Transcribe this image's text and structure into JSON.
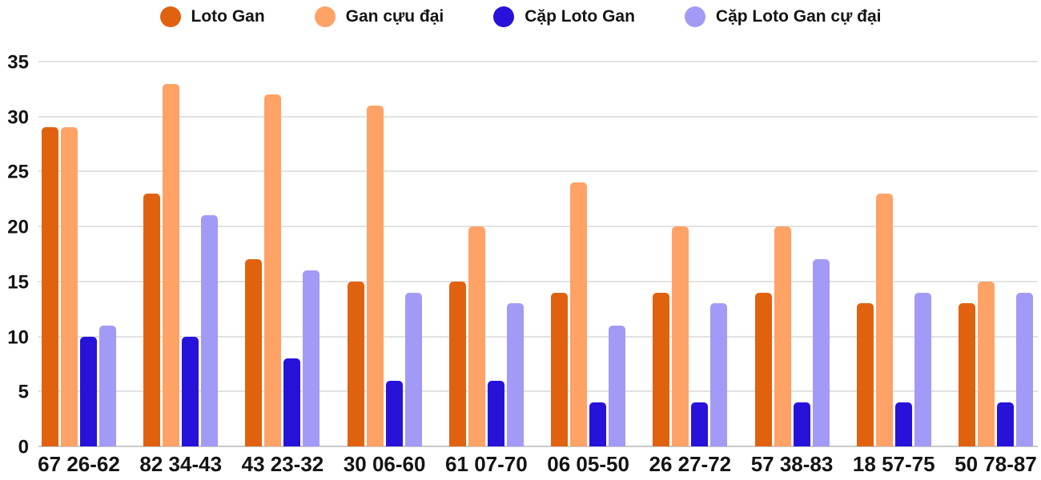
{
  "chart_data": {
    "type": "bar",
    "title": "",
    "xlabel": "",
    "ylabel": "",
    "categories": [
      "67 26-62",
      "82 34-43",
      "43 23-32",
      "30 06-60",
      "61 07-70",
      "06 05-50",
      "26 27-72",
      "57 38-83",
      "18 57-75",
      "50 78-87"
    ],
    "series": [
      {
        "name": "Loto Gan",
        "color": "#e0620f",
        "values": [
          29,
          23,
          17,
          15,
          15,
          14,
          14,
          14,
          13,
          13
        ]
      },
      {
        "name": "Gan cựu đại",
        "color": "#ffa266",
        "values": [
          29,
          33,
          32,
          31,
          20,
          24,
          20,
          20,
          23,
          15
        ]
      },
      {
        "name": "Cặp Loto Gan",
        "color": "#2712da",
        "values": [
          10,
          10,
          8,
          6,
          6,
          4,
          4,
          4,
          4,
          4
        ]
      },
      {
        "name": "Cặp Loto Gan cự đại",
        "color": "#a29af7",
        "values": [
          11,
          21,
          16,
          14,
          13,
          11,
          13,
          17,
          14,
          14
        ]
      }
    ],
    "ylim": [
      0,
      35
    ],
    "yticks": [
      0,
      5,
      10,
      15,
      20,
      25,
      30,
      35
    ],
    "grid": true,
    "legend_position": "top",
    "colors": {
      "gridline": "#e2e2e2",
      "baseline": "#c9c9c9",
      "text": "#141414",
      "background": "#ffffff"
    }
  }
}
